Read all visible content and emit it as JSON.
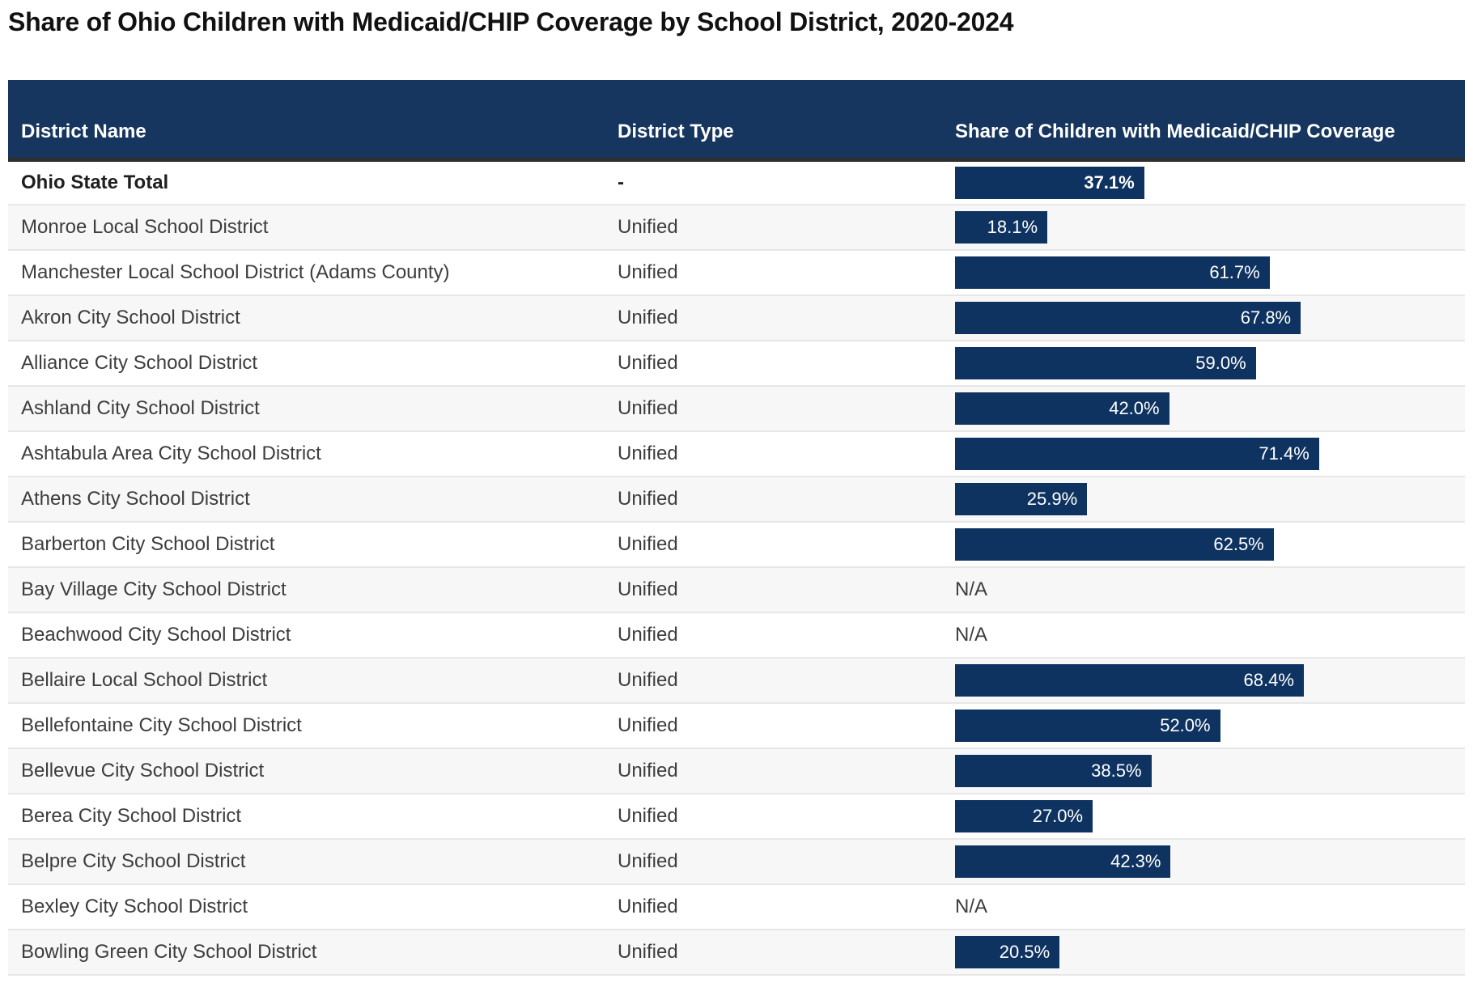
{
  "title": "Share of Ohio Children with Medicaid/CHIP Coverage by School District, 2020-2024",
  "colors": {
    "header_bg": "#16365f",
    "header_text": "#ffffff",
    "bar": "#0f3360",
    "bar_label": "#ffffff",
    "row_stripe": "#f7f7f7",
    "header_border": "#2e2e2e",
    "row_divider": "#e7e7e7",
    "body_text": "#3d3d3d"
  },
  "chart_data": {
    "type": "table",
    "title": "Share of Ohio Children with Medicaid/CHIP Coverage by School District, 2020-2024",
    "columns": [
      "District Name",
      "District Type",
      "Share of Children with Medicaid/CHIP Coverage"
    ],
    "bar_axis": {
      "min": 0,
      "max": 100,
      "unit": "%"
    },
    "missing_value_label": "N/A",
    "rows": [
      {
        "district": "Ohio State Total",
        "district_type": "-",
        "share_pct": 37.1,
        "share_label": "37.1%",
        "is_total": true
      },
      {
        "district": "Monroe Local School District",
        "district_type": "Unified",
        "share_pct": 18.1,
        "share_label": "18.1%"
      },
      {
        "district": "Manchester Local School District (Adams County)",
        "district_type": "Unified",
        "share_pct": 61.7,
        "share_label": "61.7%"
      },
      {
        "district": "Akron City School District",
        "district_type": "Unified",
        "share_pct": 67.8,
        "share_label": "67.8%"
      },
      {
        "district": "Alliance City School District",
        "district_type": "Unified",
        "share_pct": 59.0,
        "share_label": "59.0%"
      },
      {
        "district": "Ashland City School District",
        "district_type": "Unified",
        "share_pct": 42.0,
        "share_label": "42.0%"
      },
      {
        "district": "Ashtabula Area City School District",
        "district_type": "Unified",
        "share_pct": 71.4,
        "share_label": "71.4%"
      },
      {
        "district": "Athens City School District",
        "district_type": "Unified",
        "share_pct": 25.9,
        "share_label": "25.9%"
      },
      {
        "district": "Barberton City School District",
        "district_type": "Unified",
        "share_pct": 62.5,
        "share_label": "62.5%"
      },
      {
        "district": "Bay Village City School District",
        "district_type": "Unified",
        "share_pct": null,
        "share_label": "N/A"
      },
      {
        "district": "Beachwood City School District",
        "district_type": "Unified",
        "share_pct": null,
        "share_label": "N/A"
      },
      {
        "district": "Bellaire Local School District",
        "district_type": "Unified",
        "share_pct": 68.4,
        "share_label": "68.4%"
      },
      {
        "district": "Bellefontaine City School District",
        "district_type": "Unified",
        "share_pct": 52.0,
        "share_label": "52.0%"
      },
      {
        "district": "Bellevue City School District",
        "district_type": "Unified",
        "share_pct": 38.5,
        "share_label": "38.5%"
      },
      {
        "district": "Berea City School District",
        "district_type": "Unified",
        "share_pct": 27.0,
        "share_label": "27.0%"
      },
      {
        "district": "Belpre City School District",
        "district_type": "Unified",
        "share_pct": 42.3,
        "share_label": "42.3%"
      },
      {
        "district": "Bexley City School District",
        "district_type": "Unified",
        "share_pct": null,
        "share_label": "N/A"
      },
      {
        "district": "Bowling Green City School District",
        "district_type": "Unified",
        "share_pct": 20.5,
        "share_label": "20.5%"
      }
    ]
  }
}
